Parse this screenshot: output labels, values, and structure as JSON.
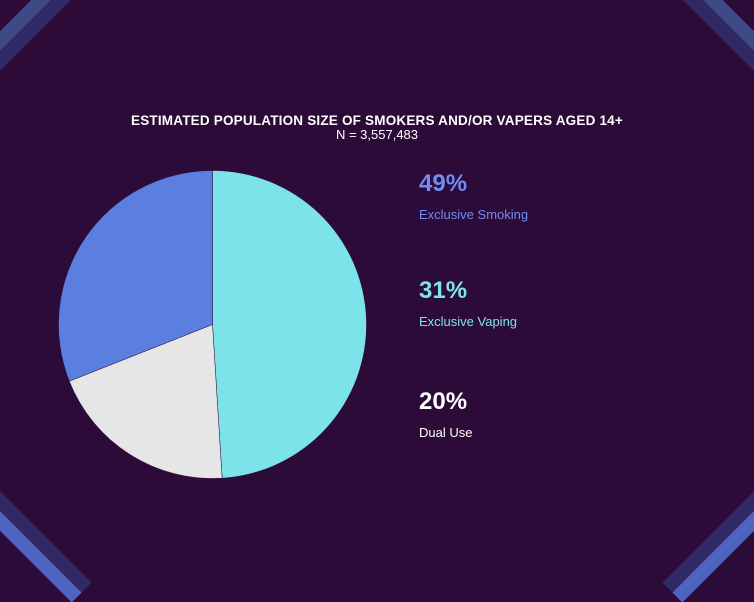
{
  "chart_data": {
    "type": "pie",
    "title": "ESTIMATED POPULATION SIZE OF SMOKERS AND/OR VAPERS AGED 14+",
    "subtitle": "N = 3,557,483",
    "slices": [
      {
        "label": "Exclusive Smoking",
        "value": 49,
        "display": "49%",
        "color": "#7de3ea",
        "text_color": "#6f8df2"
      },
      {
        "label": "Dual Use",
        "value": 20,
        "display": "20%",
        "color": "#e6e6e6",
        "text_color": "#ffffff"
      },
      {
        "label": "Exclusive Vaping",
        "value": 31,
        "display": "31%",
        "color": "#5b7fe0",
        "text_color": "#7de3ea"
      }
    ],
    "legend_order": [
      0,
      2,
      1
    ]
  },
  "colors": {
    "background": "#2d0b38"
  }
}
